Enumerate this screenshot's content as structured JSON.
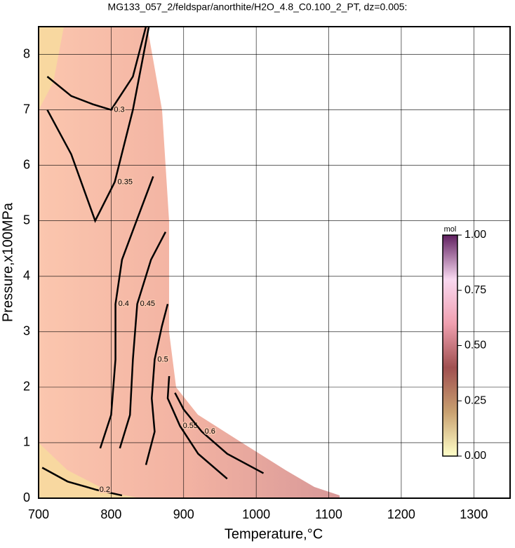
{
  "chart_data": {
    "type": "contour",
    "title": "MG133_057_2/feldspar/anorthite/H2O_4.8_C0.100_2_PT, dz=0.005:",
    "x_label": "Temperature,°C",
    "y_label": "Pressure,x100MPa",
    "xlim": [
      700,
      1350
    ],
    "ylim": [
      0,
      8.5
    ],
    "xticks": [
      700,
      800,
      900,
      1000,
      1100,
      1200,
      1300
    ],
    "yticks": [
      0,
      1,
      2,
      3,
      4,
      5,
      6,
      7,
      8
    ],
    "grid": true,
    "contours": [
      {
        "level": 0.2,
        "x": [
          705,
          740,
          780,
          815
        ],
        "y": [
          0.55,
          0.3,
          0.15,
          0.05
        ]
      },
      {
        "level": 0.3,
        "x": [
          712,
          745,
          775,
          800,
          830,
          848
        ],
        "y": [
          7.6,
          7.25,
          7.1,
          7.0,
          7.6,
          8.5
        ]
      },
      {
        "level": 0.35,
        "x": [
          712,
          745,
          778,
          805,
          830,
          852
        ],
        "y": [
          7.0,
          6.2,
          5.0,
          5.7,
          7.0,
          8.5
        ]
      },
      {
        "level": 0.4,
        "x": [
          785,
          800,
          806,
          806,
          815,
          835,
          858
        ],
        "y": [
          0.9,
          1.5,
          2.5,
          3.5,
          4.3,
          5.0,
          5.8
        ]
      },
      {
        "level": 0.45,
        "x": [
          812,
          826,
          830,
          836,
          855,
          875
        ],
        "y": [
          0.9,
          1.5,
          2.5,
          3.5,
          4.3,
          4.8
        ]
      },
      {
        "level": 0.5,
        "x": [
          848,
          860,
          856,
          860,
          870,
          878
        ],
        "y": [
          0.6,
          1.2,
          1.8,
          2.5,
          3.1,
          3.5
        ]
      },
      {
        "level": 0.55,
        "x": [
          960,
          920,
          895,
          878,
          880
        ],
        "y": [
          0.35,
          0.8,
          1.3,
          1.8,
          2.2
        ]
      },
      {
        "level": 0.6,
        "x": [
          1010,
          960,
          925,
          900,
          888
        ],
        "y": [
          0.45,
          0.8,
          1.2,
          1.6,
          1.9
        ]
      }
    ],
    "colorbar": {
      "label": "mol",
      "lim": [
        0,
        1
      ],
      "ticks": [
        {
          "value": 0,
          "label": "0.00"
        },
        {
          "value": 0.25,
          "label": "0.25"
        },
        {
          "value": 0.5,
          "label": "0.50"
        },
        {
          "value": 0.75,
          "label": "0.75"
        },
        {
          "value": 1,
          "label": "1.00"
        }
      ],
      "colors": [
        "#ffffc8",
        "#c8a070",
        "#a05050",
        "#f0a0b0",
        "#f8d8f0",
        "#602060"
      ]
    }
  }
}
